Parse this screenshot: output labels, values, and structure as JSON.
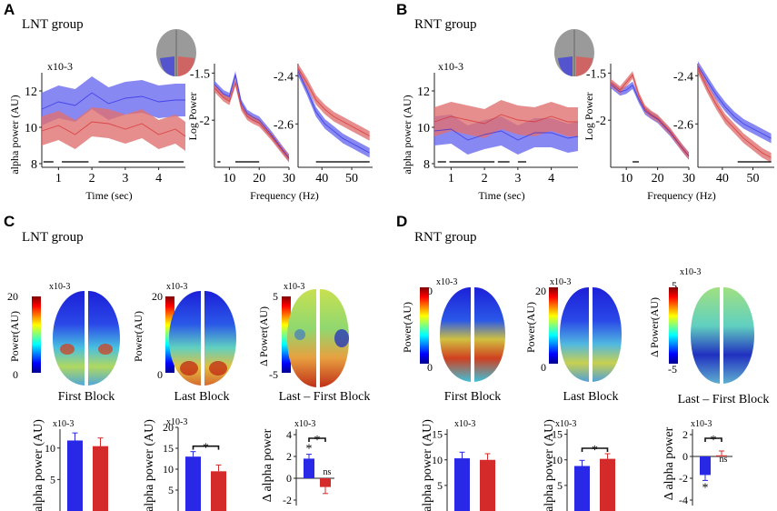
{
  "panels": {
    "A": {
      "letter": "A",
      "group": "LNT group",
      "time": {
        "scale": "x10-3",
        "ylabel": "alpha power (AU)",
        "xlabel": "Time (sec)",
        "xticks": [
          "1",
          "2",
          "3",
          "4"
        ],
        "yticks": [
          "8",
          "10",
          "12"
        ]
      },
      "freq": {
        "ylabel": "Log Power",
        "xlabel": "Frequency (Hz)",
        "low_xticks": [
          "10",
          "20",
          "30"
        ],
        "low_yticks": [
          "-1.5",
          "-2"
        ],
        "high_xticks": [
          "40",
          "50"
        ],
        "high_yticks": [
          "-2.4",
          "-2.6"
        ]
      }
    },
    "B": {
      "letter": "B",
      "group": "RNT group",
      "time": {
        "scale": "x10-3",
        "ylabel": "alpha power (AU)",
        "xlabel": "Time (sec)",
        "xticks": [
          "1",
          "2",
          "3",
          "4"
        ],
        "yticks": [
          "8",
          "10",
          "12"
        ]
      },
      "freq": {
        "ylabel": "Log Power",
        "xlabel": "Frequency (Hz)",
        "low_xticks": [
          "10",
          "20",
          "30"
        ],
        "low_yticks": [
          "-1.5",
          "-2"
        ],
        "high_xticks": [
          "40",
          "50"
        ],
        "high_yticks": [
          "-2.4",
          "-2.6"
        ]
      }
    },
    "C": {
      "letter": "C",
      "group": "LNT group",
      "maps": [
        {
          "caption": "First Block",
          "clabel": "Power(AU)",
          "scale": "x10-3",
          "cmax": "20",
          "cmin": "0"
        },
        {
          "caption": "Last Block",
          "clabel": "Power(AU)",
          "scale": "x10-3",
          "cmax": "20",
          "cmin": "0"
        },
        {
          "caption": "Last – First Block",
          "clabel": "Δ Power(AU)",
          "scale": "x10-3",
          "cmax": "5",
          "cmin": "-5"
        }
      ],
      "bars": [
        {
          "ylabel": "alpha power (AU)",
          "scale": "x10-3",
          "yticks": [
            "10",
            "5"
          ]
        },
        {
          "ylabel": "alpha power (AU)",
          "scale": "x10-3",
          "yticks": [
            "20",
            "15",
            "10",
            "5"
          ],
          "sig": "*"
        },
        {
          "ylabel": "Δ alpha power",
          "scale": "x10-3",
          "yticks": [
            "4",
            "2",
            "0",
            "-2"
          ],
          "sig": "*",
          "star1": "*",
          "ns": "ns"
        }
      ]
    },
    "D": {
      "letter": "D",
      "group": "RNT group",
      "maps": [
        {
          "caption": "First Block",
          "clabel": "Power(AU)",
          "scale": "x10-3",
          "cmax": "20",
          "cmin": "0"
        },
        {
          "caption": "Last Block",
          "clabel": "Power(AU)",
          "scale": "x10-3",
          "cmax": "20",
          "cmin": "0"
        },
        {
          "caption": "Last – First Block",
          "clabel": "Δ Power(AU)",
          "scale": "x10-3",
          "cmax": "5",
          "cmin": "-5"
        }
      ],
      "bars": [
        {
          "ylabel": "alpha power (AU)",
          "scale": "x10-3",
          "yticks": [
            "15",
            "10",
            "5"
          ]
        },
        {
          "ylabel": "alpha power (AU)",
          "scale": "x10-3",
          "yticks": [
            "15",
            "10",
            "5"
          ],
          "sig": "*"
        },
        {
          "ylabel": "Δ alpha power",
          "scale": "x10-3",
          "yticks": [
            "2",
            "0",
            "-2",
            "-4"
          ],
          "sig": "*",
          "star1": "*",
          "ns": "ns"
        }
      ]
    }
  },
  "colors": {
    "blue": "#2828e6",
    "red": "#d42a2a",
    "blue_band": "#6a6af0",
    "red_band": "#e07070"
  },
  "chart_data": [
    {
      "type": "area",
      "panel": "A-time",
      "xlim": [
        0.5,
        4.8
      ],
      "ylim": [
        7.8,
        13
      ],
      "series": [
        {
          "color": "blue",
          "x": [
            0.5,
            1.0,
            1.5,
            2.0,
            2.5,
            3.0,
            3.5,
            4.0,
            4.5,
            4.8
          ],
          "y": [
            11.0,
            11.4,
            11.2,
            11.9,
            11.3,
            11.6,
            11.7,
            11.4,
            11.5,
            11.5
          ],
          "err": 0.9
        },
        {
          "color": "red",
          "x": [
            0.5,
            1.0,
            1.5,
            2.0,
            2.5,
            3.0,
            3.5,
            4.0,
            4.5,
            4.8
          ],
          "y": [
            9.8,
            10.1,
            9.6,
            10.3,
            10.2,
            9.9,
            10.2,
            9.6,
            9.9,
            9.5
          ],
          "err": 0.8
        }
      ]
    },
    {
      "type": "line",
      "panel": "A-freq-low",
      "xlim": [
        5,
        30
      ],
      "ylim": [
        -2.5,
        -1.4
      ],
      "series": [
        {
          "color": "blue",
          "x": [
            5,
            8,
            10,
            12,
            14,
            16,
            18,
            20,
            24,
            28,
            30
          ],
          "y": [
            -1.62,
            -1.72,
            -1.75,
            -1.52,
            -1.82,
            -1.93,
            -1.97,
            -2.0,
            -2.15,
            -2.32,
            -2.4
          ],
          "err": 0.04
        },
        {
          "color": "red",
          "x": [
            5,
            8,
            10,
            12,
            14,
            16,
            18,
            20,
            24,
            28,
            30
          ],
          "y": [
            -1.66,
            -1.76,
            -1.8,
            -1.6,
            -1.86,
            -1.96,
            -2.0,
            -2.03,
            -2.17,
            -2.33,
            -2.41
          ],
          "err": 0.04
        }
      ]
    },
    {
      "type": "line",
      "panel": "A-freq-high",
      "xlim": [
        32,
        57
      ],
      "ylim": [
        -2.78,
        -2.35
      ],
      "series": [
        {
          "color": "blue",
          "x": [
            32,
            35,
            38,
            41,
            44,
            47,
            50,
            53,
            56
          ],
          "y": [
            -2.38,
            -2.46,
            -2.55,
            -2.6,
            -2.63,
            -2.66,
            -2.68,
            -2.7,
            -2.72
          ],
          "err": 0.02
        },
        {
          "color": "red",
          "x": [
            32,
            35,
            38,
            41,
            44,
            47,
            50,
            53,
            56
          ],
          "y": [
            -2.37,
            -2.43,
            -2.5,
            -2.54,
            -2.57,
            -2.59,
            -2.61,
            -2.63,
            -2.65
          ],
          "err": 0.02
        }
      ]
    },
    {
      "type": "area",
      "panel": "B-time",
      "xlim": [
        0.5,
        4.8
      ],
      "ylim": [
        7.8,
        13
      ],
      "series": [
        {
          "color": "blue",
          "x": [
            0.5,
            1.0,
            1.5,
            2.0,
            2.5,
            3.0,
            3.5,
            4.0,
            4.5,
            4.8
          ],
          "y": [
            9.8,
            9.9,
            9.3,
            9.6,
            9.8,
            9.3,
            9.7,
            9.7,
            9.4,
            9.5
          ],
          "err": 0.8
        },
        {
          "color": "red",
          "x": [
            0.5,
            1.0,
            1.5,
            2.0,
            2.5,
            3.0,
            3.5,
            4.0,
            4.5,
            4.8
          ],
          "y": [
            10.3,
            10.6,
            10.4,
            10.2,
            10.7,
            10.4,
            10.3,
            10.6,
            10.3,
            10.3
          ],
          "err": 0.8
        }
      ]
    },
    {
      "type": "line",
      "panel": "B-freq-low",
      "xlim": [
        5,
        30
      ],
      "ylim": [
        -2.5,
        -1.4
      ],
      "series": [
        {
          "color": "blue",
          "x": [
            5,
            8,
            10,
            12,
            14,
            16,
            18,
            20,
            24,
            28,
            30
          ],
          "y": [
            -1.62,
            -1.7,
            -1.68,
            -1.63,
            -1.78,
            -1.9,
            -1.95,
            -1.99,
            -2.13,
            -2.3,
            -2.38
          ],
          "err": 0.04
        },
        {
          "color": "red",
          "x": [
            5,
            8,
            10,
            12,
            14,
            16,
            18,
            20,
            24,
            28,
            30
          ],
          "y": [
            -1.6,
            -1.68,
            -1.6,
            -1.52,
            -1.74,
            -1.88,
            -1.94,
            -1.98,
            -2.12,
            -2.3,
            -2.38
          ],
          "err": 0.04
        }
      ]
    },
    {
      "type": "line",
      "panel": "B-freq-high",
      "xlim": [
        32,
        57
      ],
      "ylim": [
        -2.78,
        -2.35
      ],
      "series": [
        {
          "color": "blue",
          "x": [
            32,
            35,
            38,
            41,
            44,
            47,
            50,
            53,
            56
          ],
          "y": [
            -2.36,
            -2.42,
            -2.48,
            -2.53,
            -2.57,
            -2.6,
            -2.62,
            -2.64,
            -2.66
          ],
          "err": 0.02
        },
        {
          "color": "red",
          "x": [
            32,
            35,
            38,
            41,
            44,
            47,
            50,
            53,
            56
          ],
          "y": [
            -2.37,
            -2.45,
            -2.52,
            -2.58,
            -2.62,
            -2.66,
            -2.69,
            -2.72,
            -2.74
          ],
          "err": 0.02
        }
      ]
    },
    {
      "type": "bar",
      "panel": "C-first",
      "ylim": [
        0,
        13
      ],
      "values": [
        11.2,
        10.3
      ],
      "errors": [
        1.2,
        1.3
      ],
      "colors": [
        "blue",
        "red"
      ]
    },
    {
      "type": "bar",
      "panel": "C-last",
      "ylim": [
        0,
        20
      ],
      "values": [
        13.0,
        9.5
      ],
      "errors": [
        1.2,
        1.5
      ],
      "colors": [
        "blue",
        "red"
      ]
    },
    {
      "type": "bar",
      "panel": "C-diff",
      "ylim": [
        -2.5,
        4.5
      ],
      "values": [
        1.8,
        -0.8
      ],
      "errors": [
        0.4,
        0.6
      ],
      "colors": [
        "blue",
        "red"
      ]
    },
    {
      "type": "bar",
      "panel": "D-first",
      "ylim": [
        0,
        16
      ],
      "values": [
        10.3,
        10.0
      ],
      "errors": [
        1.2,
        1.2
      ],
      "colors": [
        "blue",
        "red"
      ]
    },
    {
      "type": "bar",
      "panel": "D-last",
      "ylim": [
        0,
        16
      ],
      "values": [
        8.8,
        10.2
      ],
      "errors": [
        1.1,
        1.0
      ],
      "colors": [
        "blue",
        "red"
      ]
    },
    {
      "type": "bar",
      "panel": "D-diff",
      "ylim": [
        -4.5,
        2.5
      ],
      "values": [
        -1.7,
        0.1
      ],
      "errors": [
        0.5,
        0.4
      ],
      "colors": [
        "blue",
        "red"
      ]
    }
  ]
}
